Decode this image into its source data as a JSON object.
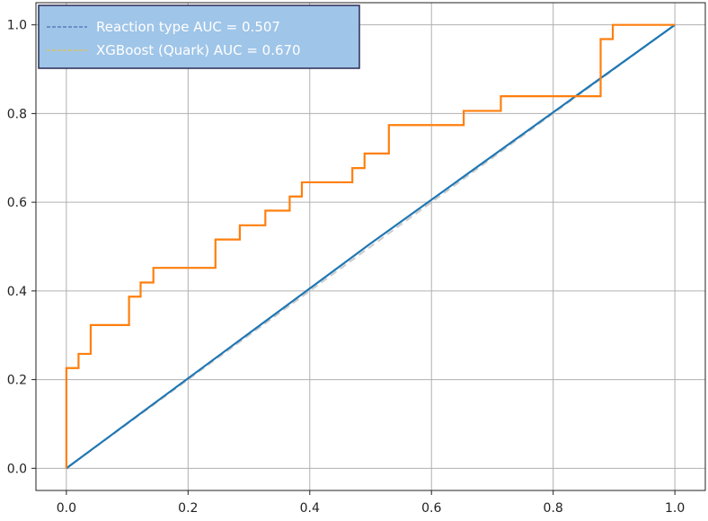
{
  "chart_data": {
    "type": "line",
    "title": "",
    "xlabel": "",
    "ylabel": "",
    "xlim": [
      -0.05,
      1.05
    ],
    "ylim": [
      -0.05,
      1.05
    ],
    "grid": true,
    "legend_position": "top-left",
    "x_ticks": [
      "0.0",
      "0.2",
      "0.4",
      "0.6",
      "0.8",
      "1.0"
    ],
    "y_ticks": [
      "0.0",
      "0.2",
      "0.4",
      "0.6",
      "0.8",
      "1.0"
    ],
    "legend": [
      {
        "label": "Reaction type AUC = 0.507",
        "color": "#4a6fb5",
        "style": "dashed"
      },
      {
        "label": "XGBoost (Quark) AUC = 0.670",
        "color": "#e8c44a",
        "style": "dashed"
      }
    ],
    "series": [
      {
        "color": "#ff7f0e",
        "style": "step",
        "x": [
          0.0,
          0.0,
          0.02,
          0.02,
          0.04,
          0.04,
          0.103,
          0.103,
          0.122,
          0.122,
          0.143,
          0.143,
          0.245,
          0.245,
          0.285,
          0.285,
          0.327,
          0.327,
          0.367,
          0.367,
          0.387,
          0.387,
          0.47,
          0.47,
          0.49,
          0.49,
          0.53,
          0.53,
          0.653,
          0.653,
          0.714,
          0.714,
          0.878,
          0.878,
          0.898,
          0.898,
          1.0
        ],
        "y": [
          0.0,
          0.226,
          0.226,
          0.258,
          0.258,
          0.323,
          0.323,
          0.387,
          0.387,
          0.419,
          0.419,
          0.452,
          0.452,
          0.516,
          0.516,
          0.548,
          0.548,
          0.581,
          0.581,
          0.613,
          0.613,
          0.645,
          0.645,
          0.677,
          0.677,
          0.71,
          0.71,
          0.774,
          0.774,
          0.806,
          0.806,
          0.839,
          0.839,
          0.968,
          0.968,
          1.0,
          1.0
        ]
      },
      {
        "color": "#1f77b4",
        "style": "solid",
        "x": [
          0.0,
          0.5,
          1.0
        ],
        "y": [
          0.0,
          0.507,
          1.0
        ]
      },
      {
        "color": "#cccccc",
        "style": "dashed",
        "x": [
          0.0,
          1.0
        ],
        "y": [
          0.0,
          1.0
        ]
      }
    ]
  }
}
